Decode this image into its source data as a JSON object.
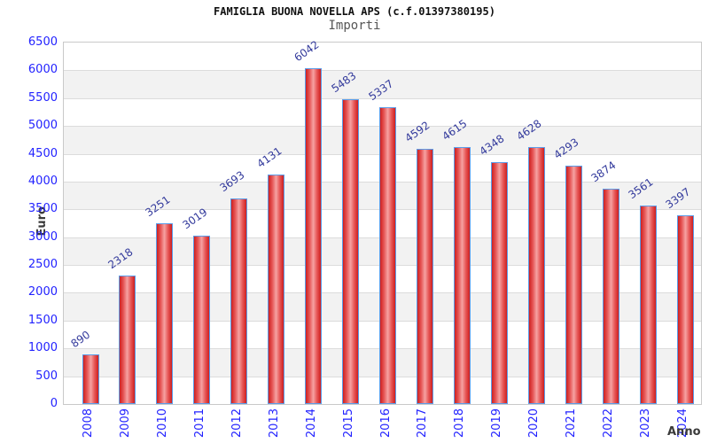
{
  "chart_data": {
    "type": "bar",
    "title": "FAMIGLIA BUONA NOVELLA APS (c.f.01397380195)",
    "subtitle": "Importi",
    "xlabel": "Anno",
    "ylabel": "Euro",
    "categories": [
      "2008",
      "2009",
      "2010",
      "2011",
      "2012",
      "2013",
      "2014",
      "2015",
      "2016",
      "2017",
      "2018",
      "2019",
      "2020",
      "2021",
      "2022",
      "2023",
      "2024"
    ],
    "values": [
      890,
      2318,
      3251,
      3019,
      3693,
      4131,
      6042,
      5483,
      5337,
      4592,
      4615,
      4348,
      4628,
      4293,
      3874,
      3561,
      3397
    ],
    "ylim": [
      0,
      6500
    ],
    "ytick_step": 500,
    "grid": true,
    "bands_alternating": true,
    "legend": null,
    "colors": {
      "bar_fill_edge": "#cd2020",
      "bar_fill_center": "#f6a2a2",
      "bar_border": "#5b9ce8",
      "tick_label": "#2222ff",
      "value_label": "#333a9c",
      "band": "#f2f2f2",
      "gridline": "#dcdcdc",
      "axis_border": "#c9c9c9",
      "title": "#111111",
      "subtitle": "#555555",
      "axis_title": "#3a3a3a",
      "background": "#ffffff"
    }
  }
}
